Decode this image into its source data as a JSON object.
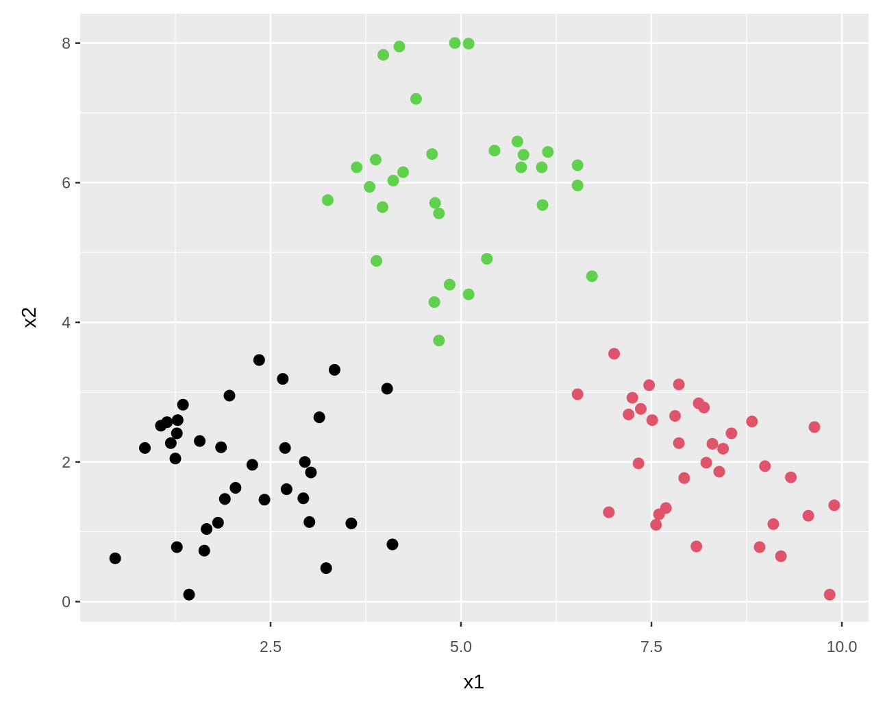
{
  "chart_data": {
    "type": "scatter",
    "x_label": "x1",
    "y_label": "x2",
    "xlim": [
      0,
      10.35
    ],
    "ylim": [
      -0.29,
      8.42
    ],
    "xticks": [
      2.5,
      {
        "value": 5,
        "label": "5.0"
      },
      7.5,
      {
        "value": 10,
        "label": "10.0"
      }
    ],
    "yticks": [
      0,
      2,
      4,
      6,
      8
    ],
    "grid": true,
    "series": [
      {
        "color": "#000000",
        "x": [
          0.46,
          0.85,
          1.06,
          1.14,
          1.19,
          1.25,
          1.27,
          1.28,
          1.35,
          1.27,
          1.43,
          1.57,
          1.63,
          1.66,
          1.81,
          1.85,
          1.9,
          1.96,
          2.04,
          2.26,
          2.35,
          2.42,
          2.66,
          2.69,
          2.71,
          2.93,
          2.95,
          3.01,
          3.03,
          3.14,
          3.23,
          3.34,
          3.56,
          4.03,
          4.1
        ],
        "values": [
          0.62,
          2.2,
          2.52,
          2.57,
          2.27,
          2.05,
          2.41,
          2.6,
          2.82,
          0.78,
          0.1,
          2.3,
          0.73,
          1.04,
          1.13,
          2.21,
          1.47,
          2.95,
          1.63,
          1.96,
          3.46,
          1.46,
          3.19,
          2.2,
          1.61,
          1.48,
          2.0,
          1.14,
          1.85,
          2.64,
          0.48,
          3.32,
          1.12,
          3.05,
          0.82
        ]
      },
      {
        "color": "#61d04f",
        "x": [
          3.25,
          3.63,
          3.8,
          3.88,
          3.89,
          3.97,
          3.98,
          4.11,
          4.19,
          4.24,
          4.41,
          4.62,
          4.65,
          4.66,
          4.71,
          4.71,
          4.85,
          4.92,
          5.1,
          5.1,
          5.34,
          5.44,
          5.74,
          5.82,
          5.79,
          6.06,
          6.07,
          6.14,
          6.53,
          6.53,
          6.72
        ],
        "values": [
          5.75,
          6.22,
          5.94,
          6.33,
          4.88,
          5.65,
          7.83,
          6.03,
          7.95,
          6.15,
          7.2,
          6.41,
          4.29,
          5.71,
          5.56,
          3.74,
          4.54,
          8.0,
          7.99,
          4.4,
          4.91,
          6.46,
          6.59,
          6.4,
          6.22,
          6.22,
          5.68,
          6.44,
          6.25,
          5.96,
          4.66
        ]
      },
      {
        "color": "#df536b",
        "x": [
          6.53,
          6.94,
          7.01,
          7.2,
          7.25,
          7.33,
          7.36,
          7.47,
          7.51,
          7.56,
          7.6,
          7.69,
          7.81,
          7.86,
          7.86,
          7.93,
          8.09,
          8.12,
          8.19,
          8.22,
          8.3,
          8.39,
          8.44,
          8.55,
          8.82,
          8.92,
          8.99,
          9.1,
          9.2,
          9.33,
          9.56,
          9.64,
          9.84,
          9.9
        ],
        "values": [
          2.97,
          1.28,
          3.55,
          2.68,
          2.92,
          1.98,
          2.76,
          3.1,
          2.6,
          1.1,
          1.25,
          1.34,
          2.66,
          2.27,
          3.11,
          1.77,
          0.79,
          2.84,
          2.78,
          1.99,
          2.26,
          1.86,
          2.19,
          2.41,
          2.58,
          0.78,
          1.94,
          1.11,
          0.65,
          1.78,
          1.23,
          2.5,
          0.1,
          1.38
        ]
      }
    ]
  }
}
